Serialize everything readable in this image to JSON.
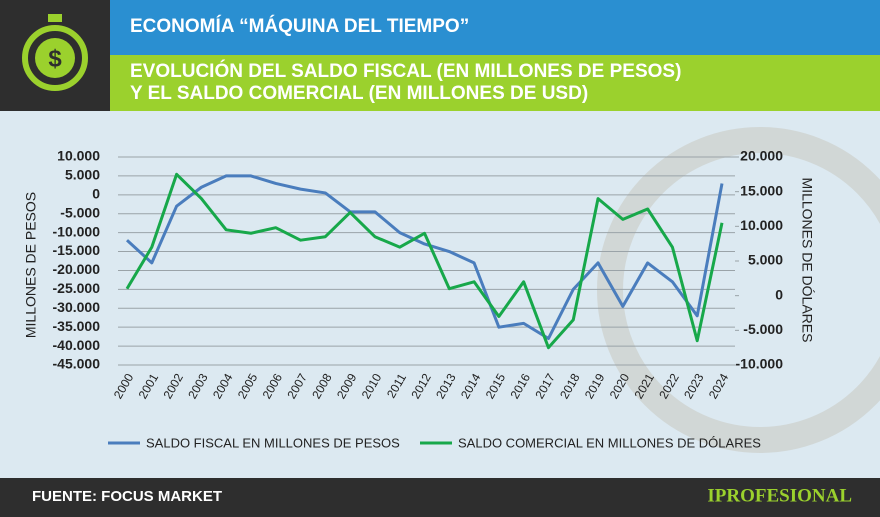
{
  "header": {
    "section": "ECONOMÍA “MÁQUINA DEL TIEMPO”"
  },
  "chart_data": {
    "type": "line",
    "title": [
      "EVOLUCIÓN DEL SALDO FISCAL (EN MILLONES DE PESOS)",
      "Y EL SALDO COMERCIAL (EN MILLONES DE USD)"
    ],
    "ylabel": "MILLONES DE PESOS",
    "y2label": "MILLONES DE DÓLARES",
    "categories": [
      "2000",
      "2001",
      "2002",
      "2003",
      "2004",
      "2005",
      "2006",
      "2007",
      "2008",
      "2009",
      "2010",
      "2011",
      "2012",
      "2013",
      "2014",
      "2015",
      "2016",
      "2017",
      "2018",
      "2019",
      "2020",
      "2021",
      "2022",
      "2023",
      "2024"
    ],
    "series": [
      {
        "name": "SALDO FISCAL EN MILLONES DE PESOS",
        "color": "#4a7dbd",
        "values": [
          -12000,
          -18000,
          -3000,
          2000,
          5000,
          5000,
          3000,
          1500,
          500,
          -4500,
          -4500,
          -10000,
          -13000,
          -15000,
          -18000,
          -35000,
          -34000,
          -38000,
          -25000,
          -18000,
          -29500,
          -18000,
          -23000,
          -32000,
          3000
        ]
      },
      {
        "name": "SALDO COMERCIAL EN MILLONES DE DÓLARES",
        "color": "#17a84a",
        "axis": "y2",
        "values": [
          1000,
          7000,
          17500,
          14000,
          9500,
          9000,
          9800,
          8000,
          8500,
          12000,
          8500,
          7000,
          9000,
          1000,
          2000,
          -3000,
          2000,
          -7500,
          -3500,
          14000,
          11000,
          12500,
          7000,
          -6500,
          10500
        ]
      }
    ],
    "ylim": [
      -45000,
      10000
    ],
    "yticks": [
      {
        "value": -45000,
        "label": "-45.000"
      },
      {
        "value": -40000,
        "label": "-40.000"
      },
      {
        "value": -35000,
        "label": "-35.000"
      },
      {
        "value": -30000,
        "label": "-30.000"
      },
      {
        "value": -25000,
        "label": "-25.000"
      },
      {
        "value": -20000,
        "label": "-20.000"
      },
      {
        "value": -15000,
        "label": "-15.000"
      },
      {
        "value": -10000,
        "label": "-10.000"
      },
      {
        "value": -5000,
        "label": "-5.000"
      },
      0,
      {
        "value": 5000,
        "label": "5.000"
      },
      {
        "value": 10000,
        "label": "10.000"
      }
    ],
    "y2lim": [
      -10000,
      20000
    ],
    "y2ticks": [
      {
        "value": -10000,
        "label": "-10.000"
      },
      {
        "value": -5000,
        "label": "-5.000"
      },
      0,
      {
        "value": 5000,
        "label": "5.000"
      },
      {
        "value": 10000,
        "label": "10.000"
      },
      {
        "value": 15000,
        "label": "15.000"
      },
      {
        "value": 20000,
        "label": "20.000"
      }
    ],
    "grid": true,
    "legend": "bottom"
  },
  "footer": {
    "source": "FUENTE: FOCUS MARKET",
    "brand": "IPROFESIONAL"
  }
}
